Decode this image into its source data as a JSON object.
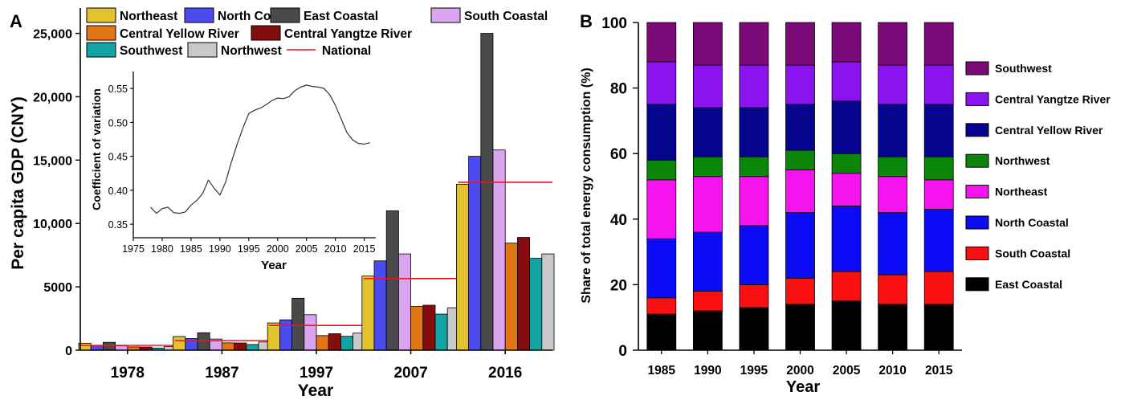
{
  "chart_data": [
    {
      "panel_label": "A",
      "type": "bar",
      "ylabel": "Per capita GDP (CNY)",
      "xlabel": "Year",
      "categories": [
        "1978",
        "1987",
        "1997",
        "2007",
        "2016"
      ],
      "ylim": [
        0,
        27000
      ],
      "yticks": [
        0,
        5000,
        10000,
        15000,
        20000,
        25000
      ],
      "ytick_labels": [
        "0",
        "5000",
        "10,000",
        "15,000",
        "20,000",
        "25,000"
      ],
      "series": [
        {
          "name": "Northeast",
          "color": "#e2c22e",
          "values": [
            550,
            1080,
            2150,
            5850,
            13100
          ]
        },
        {
          "name": "North Coastal",
          "color": "#4b4bf0",
          "values": [
            380,
            920,
            2400,
            7050,
            15300
          ]
        },
        {
          "name": "East Coastal",
          "color": "#4a4a4a",
          "values": [
            620,
            1380,
            4100,
            11000,
            25000
          ]
        },
        {
          "name": "South Coastal",
          "color": "#d9a5f0",
          "values": [
            350,
            880,
            2800,
            7600,
            15800
          ]
        },
        {
          "name": "Central Yellow River",
          "color": "#e07616",
          "values": [
            260,
            580,
            1150,
            3450,
            8450
          ]
        },
        {
          "name": "Central Yangtze River",
          "color": "#860d0d",
          "values": [
            250,
            570,
            1300,
            3550,
            8900
          ]
        },
        {
          "name": "Southwest",
          "color": "#13a3a3",
          "values": [
            170,
            450,
            1100,
            2850,
            7250
          ]
        },
        {
          "name": "Northwest",
          "color": "#c9c9c9",
          "values": [
            280,
            650,
            1350,
            3350,
            7600
          ]
        }
      ],
      "national": {
        "name": "National",
        "color": "#f0141e",
        "values": [
          380,
          760,
          1950,
          5650,
          13250
        ]
      },
      "legend_position": "top",
      "inset": {
        "type": "line",
        "ylabel": "Coefficient of variation",
        "xlabel": "Year",
        "xlim": [
          1975,
          2017
        ],
        "ylim": [
          0.33,
          0.575
        ],
        "xticks": [
          1975,
          1980,
          1985,
          1990,
          1995,
          2000,
          2005,
          2010,
          2015
        ],
        "yticks": [
          0.35,
          0.4,
          0.45,
          0.5,
          0.55
        ],
        "ytick_labels": [
          "0.35",
          "0.40",
          "0.45",
          "0.50",
          "0.55"
        ],
        "color": "#333333",
        "x": [
          1978,
          1979,
          1980,
          1981,
          1982,
          1983,
          1984,
          1985,
          1986,
          1987,
          1988,
          1989,
          1990,
          1991,
          1992,
          1993,
          1994,
          1995,
          1996,
          1997,
          1998,
          1999,
          2000,
          2001,
          2002,
          2003,
          2004,
          2005,
          2006,
          2007,
          2008,
          2009,
          2010,
          2011,
          2012,
          2013,
          2014,
          2015,
          2016
        ],
        "y": [
          0.375,
          0.366,
          0.373,
          0.375,
          0.367,
          0.366,
          0.368,
          0.378,
          0.385,
          0.395,
          0.415,
          0.403,
          0.393,
          0.412,
          0.442,
          0.468,
          0.492,
          0.513,
          0.518,
          0.521,
          0.526,
          0.532,
          0.536,
          0.535,
          0.538,
          0.547,
          0.552,
          0.555,
          0.553,
          0.552,
          0.55,
          0.541,
          0.525,
          0.505,
          0.485,
          0.474,
          0.469,
          0.468,
          0.47
        ]
      }
    },
    {
      "panel_label": "B",
      "type": "bar",
      "stacked": true,
      "ylabel": "Share of total energy consumption (%)",
      "xlabel": "Year",
      "categories": [
        "1985",
        "1990",
        "1995",
        "2000",
        "2005",
        "2010",
        "2015"
      ],
      "ylim": [
        0,
        100
      ],
      "yticks": [
        0,
        20,
        40,
        60,
        80,
        100
      ],
      "ytick_labels": [
        "0",
        "20",
        "40",
        "60",
        "80",
        "100"
      ],
      "series": [
        {
          "name": "East Coastal",
          "color": "#000000",
          "values": [
            11,
            12,
            13,
            14,
            15,
            14,
            14
          ]
        },
        {
          "name": "South Coastal",
          "color": "#fa1010",
          "values": [
            5,
            6,
            7,
            8,
            9,
            9,
            10
          ]
        },
        {
          "name": "North Coastal",
          "color": "#0b0bf5",
          "values": [
            18,
            18,
            18,
            20,
            20,
            19,
            19
          ]
        },
        {
          "name": "Northeast",
          "color": "#f514f0",
          "values": [
            18,
            17,
            15,
            13,
            10,
            11,
            9
          ]
        },
        {
          "name": "Northwest",
          "color": "#0b860b",
          "values": [
            6,
            6,
            6,
            6,
            6,
            6,
            7
          ]
        },
        {
          "name": "Central Yellow River",
          "color": "#050590",
          "values": [
            17,
            15,
            15,
            14,
            16,
            16,
            16
          ]
        },
        {
          "name": "Central Yangtze River",
          "color": "#8b13f0",
          "values": [
            13,
            13,
            13,
            12,
            12,
            12,
            12
          ]
        },
        {
          "name": "Southwest",
          "color": "#7b0a78",
          "values": [
            12,
            13,
            13,
            13,
            12,
            13,
            13
          ]
        }
      ],
      "legend_order": [
        "Southwest",
        "Central Yangtze River",
        "Central Yellow River",
        "Northwest",
        "Northeast",
        "North Coastal",
        "South Coastal",
        "East Coastal"
      ],
      "legend_position": "right"
    }
  ]
}
